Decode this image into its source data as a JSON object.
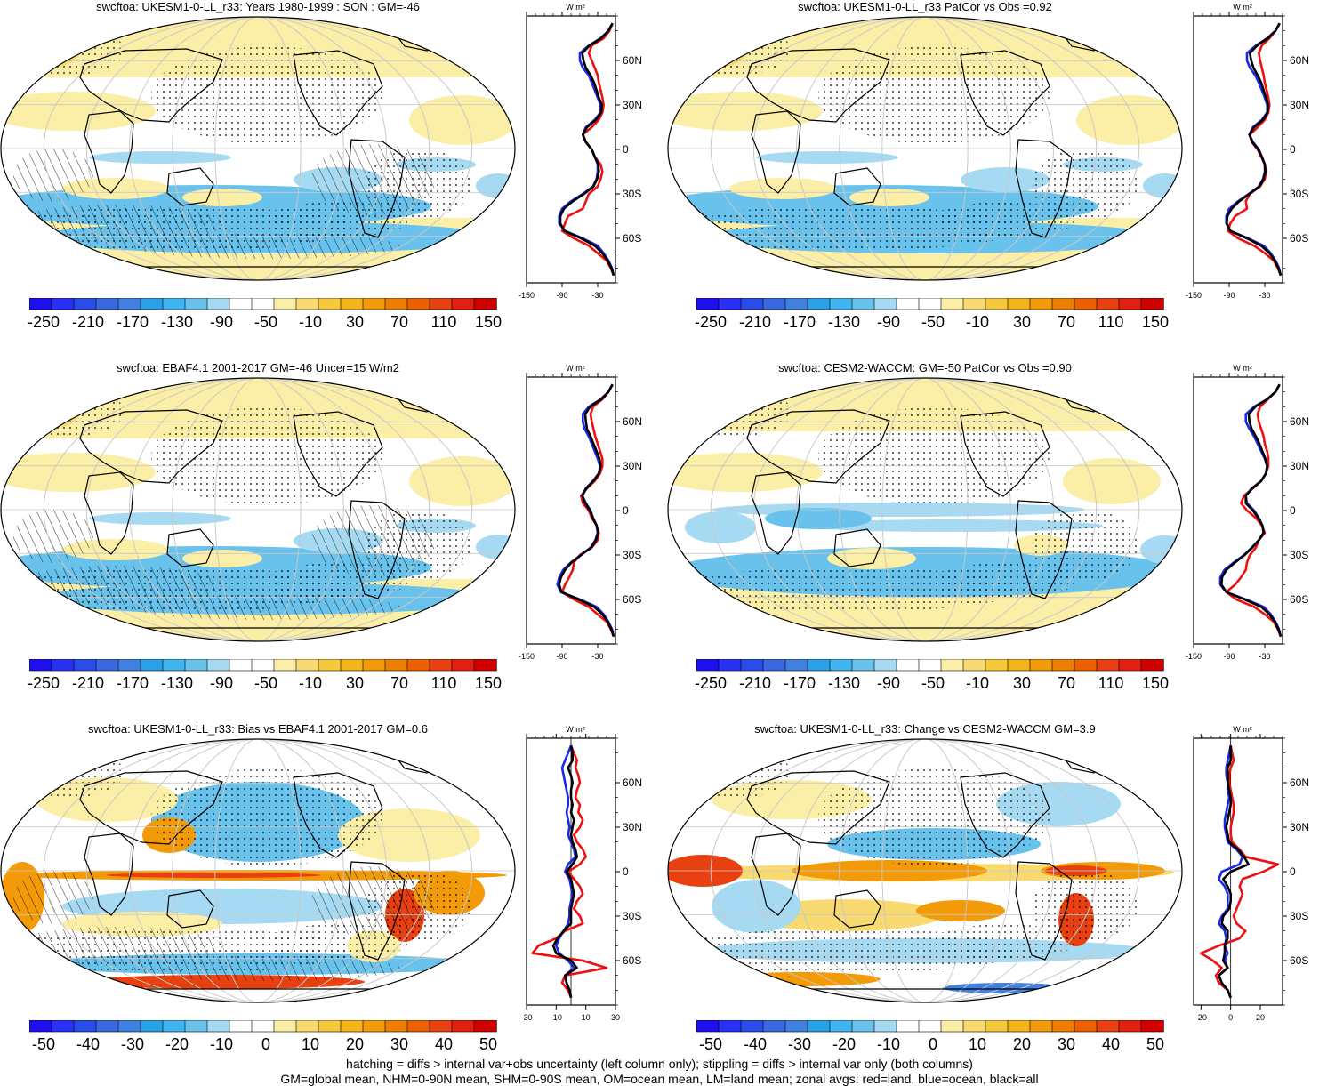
{
  "colorbar": {
    "colors": [
      "#1e0ff0",
      "#2830f5",
      "#2a4ce8",
      "#3a68e0",
      "#4080e0",
      "#2aa0e8",
      "#3fb4f0",
      "#68c2ec",
      "#a6daf2",
      "#ffffff",
      "#ffffff",
      "#fbeea6",
      "#f8da70",
      "#f6c83c",
      "#f4b41a",
      "#f29a08",
      "#ee7e00",
      "#ec6000",
      "#e84010",
      "#e22010",
      "#d00000"
    ]
  },
  "panels": [
    {
      "id": "p1",
      "title": "swcftoa: UKESM1-0-LL_r33: Years 1980-1999 : SON : GM=-46",
      "hatched": true,
      "map_kind": "climatology",
      "cbar_labels": [
        "-250",
        "-210",
        "-170",
        "-130",
        "-90",
        "-50",
        "-10",
        "30",
        "70",
        "110",
        "150"
      ],
      "zonal": {
        "units_label": "W m²",
        "xmin": -150,
        "xmax": 0,
        "xtick_values": [
          -150,
          -90,
          -30
        ],
        "xtick_labels": [
          "-150",
          "-90",
          "-30"
        ],
        "ytick_labels": [
          "60N",
          "30N",
          "0",
          "30S",
          "60S"
        ],
        "lat": [
          85,
          80,
          75,
          70,
          65,
          60,
          55,
          50,
          45,
          40,
          35,
          30,
          25,
          20,
          15,
          10,
          5,
          0,
          -5,
          -10,
          -15,
          -20,
          -25,
          -30,
          -35,
          -40,
          -45,
          -50,
          -55,
          -60,
          -65,
          -70,
          -75,
          -80,
          -85
        ],
        "land": [
          -5,
          -10,
          -20,
          -40,
          -45,
          -40,
          -35,
          -30,
          -28,
          -25,
          -22,
          -20,
          -22,
          -28,
          -40,
          -55,
          -50,
          -40,
          -35,
          -25,
          -22,
          -25,
          -30,
          -45,
          -50,
          -55,
          -80,
          -85,
          -90,
          -70,
          -45,
          -30,
          -15,
          -8,
          -3
        ],
        "ocean": [
          -5,
          -12,
          -25,
          -45,
          -60,
          -60,
          -55,
          -45,
          -40,
          -35,
          -30,
          -25,
          -25,
          -35,
          -50,
          -55,
          -50,
          -40,
          -35,
          -30,
          -30,
          -32,
          -38,
          -55,
          -75,
          -90,
          -95,
          -95,
          -85,
          -55,
          -30,
          -20,
          -12,
          -6,
          -3
        ],
        "all": [
          -5,
          -12,
          -24,
          -44,
          -56,
          -54,
          -50,
          -42,
          -36,
          -32,
          -28,
          -23,
          -24,
          -33,
          -48,
          -55,
          -50,
          -40,
          -35,
          -29,
          -28,
          -31,
          -37,
          -53,
          -72,
          -87,
          -93,
          -93,
          -86,
          -58,
          -35,
          -22,
          -13,
          -7,
          -3
        ]
      }
    },
    {
      "id": "p2",
      "title": "swcftoa: UKESM1-0-LL_r33 PatCor vs Obs =0.92",
      "hatched": false,
      "map_kind": "climatology",
      "cbar_labels": [
        "-250",
        "-210",
        "-170",
        "-130",
        "-90",
        "-50",
        "-10",
        "30",
        "70",
        "110",
        "150"
      ],
      "zonal": {
        "units_label": "W m²",
        "xmin": -150,
        "xmax": 0,
        "xtick_values": [
          -150,
          -90,
          -30
        ],
        "xtick_labels": [
          "-150",
          "-90",
          "-30"
        ],
        "ytick_labels": [
          "60N",
          "30N",
          "0",
          "30S",
          "60S"
        ],
        "lat": [
          85,
          80,
          75,
          70,
          65,
          60,
          55,
          50,
          45,
          40,
          35,
          30,
          25,
          20,
          15,
          10,
          5,
          0,
          -5,
          -10,
          -15,
          -20,
          -25,
          -30,
          -35,
          -40,
          -45,
          -50,
          -55,
          -60,
          -65,
          -70,
          -75,
          -80,
          -85
        ],
        "land": [
          -5,
          -12,
          -22,
          -35,
          -40,
          -38,
          -35,
          -32,
          -30,
          -27,
          -24,
          -22,
          -24,
          -30,
          -42,
          -55,
          -52,
          -42,
          -36,
          -30,
          -28,
          -30,
          -38,
          -55,
          -62,
          -60,
          -80,
          -88,
          -92,
          -75,
          -48,
          -30,
          -15,
          -8,
          -3
        ],
        "ocean": [
          -5,
          -12,
          -26,
          -45,
          -60,
          -60,
          -55,
          -46,
          -40,
          -35,
          -30,
          -26,
          -26,
          -35,
          -50,
          -56,
          -50,
          -40,
          -35,
          -30,
          -30,
          -33,
          -40,
          -57,
          -75,
          -90,
          -95,
          -95,
          -88,
          -58,
          -32,
          -20,
          -12,
          -6,
          -3
        ],
        "all": [
          -5,
          -12,
          -25,
          -43,
          -55,
          -53,
          -49,
          -42,
          -36,
          -32,
          -28,
          -24,
          -25,
          -33,
          -48,
          -56,
          -51,
          -41,
          -35,
          -30,
          -29,
          -32,
          -39,
          -56,
          -73,
          -86,
          -93,
          -94,
          -88,
          -60,
          -36,
          -22,
          -13,
          -7,
          -3
        ]
      }
    },
    {
      "id": "p3",
      "title": "swcftoa: EBAF4.1 2001-2017 GM=-46 Uncer=15 W/m2",
      "hatched": true,
      "map_kind": "climatology",
      "cbar_labels": [
        "-250",
        "-210",
        "-170",
        "-130",
        "-90",
        "-50",
        "-10",
        "30",
        "70",
        "110",
        "150"
      ],
      "zonal": {
        "units_label": "W m²",
        "xmin": -150,
        "xmax": 0,
        "xtick_values": [
          -150,
          -90,
          -30
        ],
        "xtick_labels": [
          "-150",
          "-90",
          "-30"
        ],
        "ytick_labels": [
          "60N",
          "30N",
          "0",
          "30S",
          "60S"
        ],
        "lat": [
          85,
          80,
          75,
          70,
          65,
          60,
          55,
          50,
          45,
          40,
          35,
          30,
          25,
          20,
          15,
          10,
          5,
          0,
          -5,
          -10,
          -15,
          -20,
          -25,
          -30,
          -35,
          -40,
          -45,
          -50,
          -55,
          -60,
          -65,
          -70,
          -75,
          -80,
          -85
        ],
        "land": [
          -5,
          -12,
          -22,
          -38,
          -42,
          -40,
          -37,
          -34,
          -30,
          -26,
          -22,
          -22,
          -26,
          -35,
          -48,
          -58,
          -55,
          -45,
          -40,
          -32,
          -28,
          -30,
          -40,
          -60,
          -70,
          -72,
          -78,
          -85,
          -90,
          -70,
          -45,
          -30,
          -15,
          -8,
          -3
        ],
        "ocean": [
          -5,
          -12,
          -25,
          -45,
          -55,
          -55,
          -52,
          -45,
          -40,
          -35,
          -30,
          -26,
          -28,
          -38,
          -50,
          -56,
          -50,
          -42,
          -38,
          -32,
          -30,
          -34,
          -42,
          -58,
          -75,
          -88,
          -95,
          -98,
          -92,
          -60,
          -32,
          -20,
          -12,
          -6,
          -3
        ],
        "all": [
          -5,
          -12,
          -24,
          -43,
          -51,
          -50,
          -48,
          -42,
          -37,
          -32,
          -27,
          -25,
          -28,
          -37,
          -49,
          -56,
          -51,
          -43,
          -38,
          -32,
          -29,
          -33,
          -41,
          -58,
          -74,
          -85,
          -92,
          -95,
          -91,
          -62,
          -36,
          -22,
          -13,
          -7,
          -3
        ]
      }
    },
    {
      "id": "p4",
      "title": "swcftoa: CESM2-WACCM: GM=-50 PatCor vs Obs =0.90",
      "hatched": false,
      "map_kind": "climatology2",
      "cbar_labels": [
        "-250",
        "-210",
        "-170",
        "-130",
        "-90",
        "-50",
        "-10",
        "30",
        "70",
        "110",
        "150"
      ],
      "zonal": {
        "units_label": "W m²",
        "xmin": -150,
        "xmax": 0,
        "xtick_values": [
          -150,
          -90,
          -30
        ],
        "xtick_labels": [
          "-150",
          "-90",
          "-30"
        ],
        "ytick_labels": [
          "60N",
          "30N",
          "0",
          "30S",
          "60S"
        ],
        "lat": [
          85,
          80,
          75,
          70,
          65,
          60,
          55,
          50,
          45,
          40,
          35,
          30,
          25,
          20,
          15,
          10,
          5,
          0,
          -5,
          -10,
          -15,
          -20,
          -25,
          -30,
          -35,
          -40,
          -45,
          -50,
          -55,
          -60,
          -65,
          -70,
          -75,
          -80,
          -85
        ],
        "land": [
          -5,
          -12,
          -25,
          -38,
          -42,
          -40,
          -36,
          -32,
          -30,
          -26,
          -24,
          -24,
          -28,
          -36,
          -50,
          -65,
          -70,
          -60,
          -45,
          -35,
          -30,
          -40,
          -45,
          -55,
          -60,
          -62,
          -70,
          -80,
          -95,
          -78,
          -48,
          -30,
          -15,
          -8,
          -3
        ],
        "ocean": [
          -5,
          -12,
          -26,
          -48,
          -62,
          -62,
          -56,
          -48,
          -42,
          -36,
          -30,
          -26,
          -28,
          -36,
          -52,
          -62,
          -60,
          -48,
          -40,
          -34,
          -32,
          -40,
          -52,
          -65,
          -82,
          -98,
          -105,
          -105,
          -95,
          -62,
          -32,
          -20,
          -12,
          -6,
          -3
        ],
        "all": [
          -5,
          -12,
          -26,
          -46,
          -57,
          -56,
          -52,
          -45,
          -39,
          -34,
          -29,
          -26,
          -28,
          -36,
          -51,
          -62,
          -62,
          -50,
          -41,
          -34,
          -32,
          -40,
          -51,
          -64,
          -80,
          -95,
          -102,
          -103,
          -95,
          -64,
          -36,
          -22,
          -13,
          -7,
          -3
        ]
      }
    },
    {
      "id": "p5",
      "title": "swcftoa: UKESM1-0-LL_r33: Bias vs EBAF4.1 2001-2017  GM=0.6",
      "hatched": true,
      "map_kind": "bias",
      "cbar_labels": [
        "-50",
        "-40",
        "-30",
        "-20",
        "-10",
        "0",
        "10",
        "20",
        "30",
        "40",
        "50"
      ],
      "zonal": {
        "units_label": "W m²",
        "xmin": -30,
        "xmax": 30,
        "xtick_values": [
          -30,
          -10,
          10,
          30
        ],
        "xtick_labels": [
          "-30",
          "-10",
          "10",
          "30"
        ],
        "ytick_labels": [
          "60N",
          "30N",
          "0",
          "30S",
          "60S"
        ],
        "lat": [
          85,
          80,
          75,
          70,
          65,
          60,
          55,
          50,
          45,
          40,
          35,
          30,
          25,
          20,
          15,
          10,
          5,
          0,
          -5,
          -10,
          -15,
          -20,
          -25,
          -30,
          -35,
          -40,
          -45,
          -50,
          -55,
          -60,
          -65,
          -70,
          -75,
          -80,
          -85
        ],
        "land": [
          0,
          2,
          4,
          3,
          5,
          6,
          4,
          3,
          6,
          5,
          8,
          6,
          2,
          4,
          8,
          10,
          6,
          -2,
          2,
          6,
          8,
          4,
          2,
          6,
          8,
          -4,
          -10,
          -22,
          -26,
          8,
          24,
          -4,
          -6,
          -2,
          0
        ],
        "ocean": [
          0,
          -2,
          -4,
          -6,
          -5,
          -4,
          -3,
          -2,
          -2,
          -3,
          -2,
          -1,
          -2,
          0,
          2,
          3,
          -2,
          -4,
          -1,
          0,
          1,
          0,
          -1,
          -1,
          -2,
          -5,
          -8,
          -10,
          -8,
          -2,
          2,
          -4,
          -3,
          -1,
          0
        ],
        "all": [
          0,
          1,
          1,
          -2,
          0,
          1,
          0,
          0,
          1,
          0,
          2,
          1,
          0,
          1,
          3,
          4,
          1,
          -3,
          0,
          1,
          2,
          1,
          0,
          0,
          0,
          -5,
          -9,
          -12,
          -10,
          0,
          4,
          -4,
          -3,
          -1,
          0
        ]
      }
    },
    {
      "id": "p6",
      "title": "swcftoa: UKESM1-0-LL_r33: Change vs CESM2-WACCM GM=3.9",
      "hatched": false,
      "map_kind": "change",
      "cbar_labels": [
        "-50",
        "-40",
        "-30",
        "-20",
        "-10",
        "0",
        "10",
        "20",
        "30",
        "40",
        "50"
      ],
      "zonal": {
        "units_label": "W m²",
        "xmin": -25,
        "xmax": 35,
        "xtick_values": [
          -20,
          0,
          20
        ],
        "xtick_labels": [
          "-20",
          "0",
          "20"
        ],
        "ytick_labels": [
          "60N",
          "30N",
          "0",
          "30S",
          "60S"
        ],
        "lat": [
          85,
          80,
          75,
          70,
          65,
          60,
          55,
          50,
          45,
          40,
          35,
          30,
          25,
          20,
          15,
          10,
          5,
          0,
          -5,
          -10,
          -15,
          -20,
          -25,
          -30,
          -35,
          -40,
          -45,
          -50,
          -55,
          -60,
          -65,
          -70,
          -75,
          -80,
          -85
        ],
        "land": [
          0,
          1,
          2,
          0,
          -1,
          -1,
          0,
          1,
          2,
          2,
          1,
          0,
          0,
          1,
          6,
          10,
          32,
          22,
          8,
          6,
          8,
          6,
          4,
          2,
          4,
          10,
          6,
          -8,
          -20,
          -12,
          -6,
          -10,
          -8,
          -2,
          0
        ],
        "ocean": [
          0,
          -1,
          -2,
          -3,
          -3,
          -2,
          -2,
          -1,
          -2,
          -3,
          -4,
          -4,
          -3,
          -2,
          4,
          8,
          6,
          -6,
          -8,
          -4,
          -2,
          -2,
          -2,
          -6,
          -8,
          -4,
          -3,
          -4,
          -2,
          -4,
          -2,
          -8,
          -6,
          -2,
          0
        ],
        "all": [
          0,
          0,
          0,
          -2,
          -2,
          -2,
          -1,
          0,
          0,
          -1,
          -2,
          -3,
          -2,
          -1,
          5,
          9,
          12,
          0,
          -5,
          -2,
          0,
          0,
          -1,
          -5,
          -6,
          -2,
          -2,
          -4,
          -4,
          -5,
          -2,
          -8,
          -6,
          -2,
          0
        ]
      }
    }
  ],
  "footer": {
    "line1": "hatching = diffs > internal var+obs uncertainty (left column only); stippling = diffs > internal var only (both columns)",
    "line2": "GM=global mean, NHM=0-90N mean, SHM=0-90S mean, OM=ocean mean, LM=land mean; zonal avgs: red=land, blue=ocean, black=all"
  }
}
